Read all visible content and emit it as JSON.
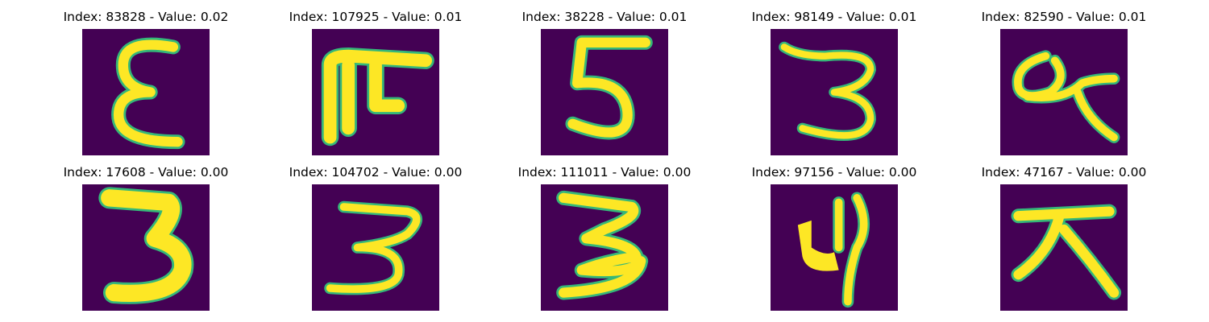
{
  "panels": [
    {
      "index_label": "Index: 83828 - Value: 0.02",
      "glyph": "E-curly"
    },
    {
      "index_label": "Index: 107925 - Value: 0.01",
      "glyph": "F-bar"
    },
    {
      "index_label": "Index: 38228 - Value: 0.01",
      "glyph": "five"
    },
    {
      "index_label": "Index: 98149 - Value: 0.01",
      "glyph": "three-open"
    },
    {
      "index_label": "Index: 82590 - Value: 0.01",
      "glyph": "loop-q"
    },
    {
      "index_label": "Index: 17608 - Value: 0.00",
      "glyph": "three-bold"
    },
    {
      "index_label": "Index: 104702 - Value: 0.00",
      "glyph": "three-thin"
    },
    {
      "index_label": "Index: 111011 - Value: 0.00",
      "glyph": "three-zigzag"
    },
    {
      "index_label": "Index: 97156 - Value: 0.00",
      "glyph": "four-filled"
    },
    {
      "index_label": "Index: 47167 - Value: 0.00",
      "glyph": "cross-A"
    }
  ],
  "colors": {
    "background": "#440154",
    "stroke": "#fde725",
    "edge": "#35b779"
  }
}
